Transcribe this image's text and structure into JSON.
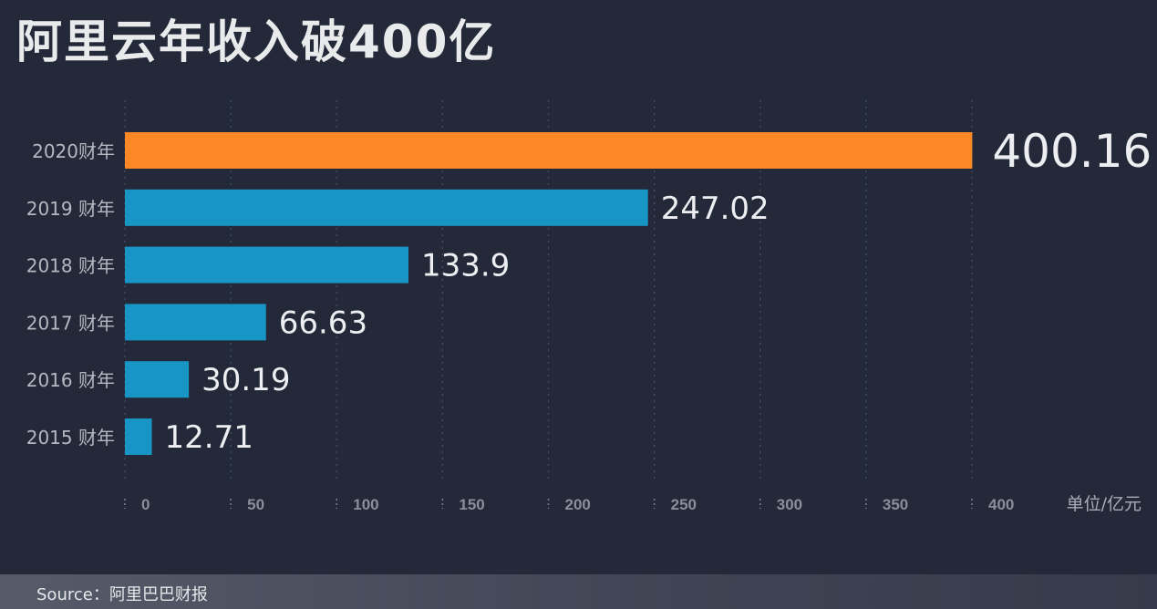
{
  "chart_data": {
    "type": "bar",
    "orientation": "horizontal",
    "title": "阿里云年收入破400亿",
    "categories": [
      "2020财年",
      "2019 财年",
      "2018 财年",
      "2017 财年",
      "2016 财年",
      "2015 财年"
    ],
    "values": [
      400.16,
      247.02,
      133.9,
      66.63,
      30.19,
      12.71
    ],
    "value_labels": [
      "400.16",
      "247.02",
      "133.9",
      "66.63",
      "30.19",
      "12.71"
    ],
    "highlight_color": "#fb8825",
    "bar_color": "#1796c5",
    "xlim": [
      0,
      400
    ],
    "xticks": [
      0,
      50,
      100,
      150,
      200,
      250,
      300,
      350,
      400
    ],
    "unit_label": "单位/亿元",
    "grid": "vertical dotted",
    "source": "Source：阿里巴巴财报"
  }
}
